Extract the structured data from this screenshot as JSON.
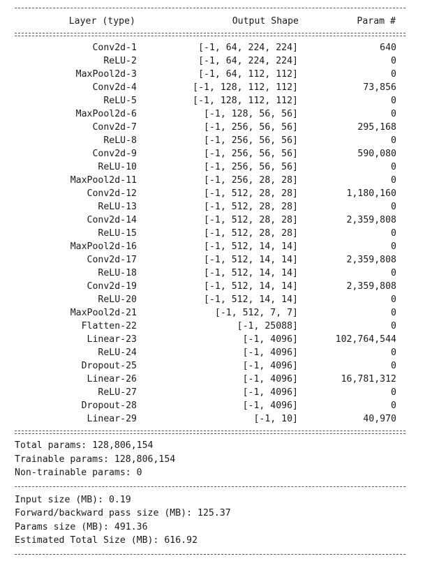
{
  "header": {
    "layer_col": "Layer (type)",
    "shape_col": "Output Shape",
    "param_col": "Param #"
  },
  "layers": [
    {
      "name": "Conv2d-1",
      "shape": "[-1, 64, 224, 224]",
      "params": "640"
    },
    {
      "name": "ReLU-2",
      "shape": "[-1, 64, 224, 224]",
      "params": "0"
    },
    {
      "name": "MaxPool2d-3",
      "shape": "[-1, 64, 112, 112]",
      "params": "0"
    },
    {
      "name": "Conv2d-4",
      "shape": "[-1, 128, 112, 112]",
      "params": "73,856"
    },
    {
      "name": "ReLU-5",
      "shape": "[-1, 128, 112, 112]",
      "params": "0"
    },
    {
      "name": "MaxPool2d-6",
      "shape": "[-1, 128, 56, 56]",
      "params": "0"
    },
    {
      "name": "Conv2d-7",
      "shape": "[-1, 256, 56, 56]",
      "params": "295,168"
    },
    {
      "name": "ReLU-8",
      "shape": "[-1, 256, 56, 56]",
      "params": "0"
    },
    {
      "name": "Conv2d-9",
      "shape": "[-1, 256, 56, 56]",
      "params": "590,080"
    },
    {
      "name": "ReLU-10",
      "shape": "[-1, 256, 56, 56]",
      "params": "0"
    },
    {
      "name": "MaxPool2d-11",
      "shape": "[-1, 256, 28, 28]",
      "params": "0"
    },
    {
      "name": "Conv2d-12",
      "shape": "[-1, 512, 28, 28]",
      "params": "1,180,160"
    },
    {
      "name": "ReLU-13",
      "shape": "[-1, 512, 28, 28]",
      "params": "0"
    },
    {
      "name": "Conv2d-14",
      "shape": "[-1, 512, 28, 28]",
      "params": "2,359,808"
    },
    {
      "name": "ReLU-15",
      "shape": "[-1, 512, 28, 28]",
      "params": "0"
    },
    {
      "name": "MaxPool2d-16",
      "shape": "[-1, 512, 14, 14]",
      "params": "0"
    },
    {
      "name": "Conv2d-17",
      "shape": "[-1, 512, 14, 14]",
      "params": "2,359,808"
    },
    {
      "name": "ReLU-18",
      "shape": "[-1, 512, 14, 14]",
      "params": "0"
    },
    {
      "name": "Conv2d-19",
      "shape": "[-1, 512, 14, 14]",
      "params": "2,359,808"
    },
    {
      "name": "ReLU-20",
      "shape": "[-1, 512, 14, 14]",
      "params": "0"
    },
    {
      "name": "MaxPool2d-21",
      "shape": "[-1, 512, 7, 7]",
      "params": "0"
    },
    {
      "name": "Flatten-22",
      "shape": "[-1, 25088]",
      "params": "0"
    },
    {
      "name": "Linear-23",
      "shape": "[-1, 4096]",
      "params": "102,764,544"
    },
    {
      "name": "ReLU-24",
      "shape": "[-1, 4096]",
      "params": "0"
    },
    {
      "name": "Dropout-25",
      "shape": "[-1, 4096]",
      "params": "0"
    },
    {
      "name": "Linear-26",
      "shape": "[-1, 4096]",
      "params": "16,781,312"
    },
    {
      "name": "ReLU-27",
      "shape": "[-1, 4096]",
      "params": "0"
    },
    {
      "name": "Dropout-28",
      "shape": "[-1, 4096]",
      "params": "0"
    },
    {
      "name": "Linear-29",
      "shape": "[-1, 10]",
      "params": "40,970"
    }
  ],
  "params_summary": {
    "total": "Total params: 128,806,154",
    "trainable": "Trainable params: 128,806,154",
    "non_trainable": "Non-trainable params: 0"
  },
  "size_summary": {
    "input": "Input size (MB): 0.19",
    "forward_backward": "Forward/backward pass size (MB): 125.37",
    "params": "Params size (MB): 491.36",
    "total": "Estimated Total Size (MB): 616.92"
  }
}
